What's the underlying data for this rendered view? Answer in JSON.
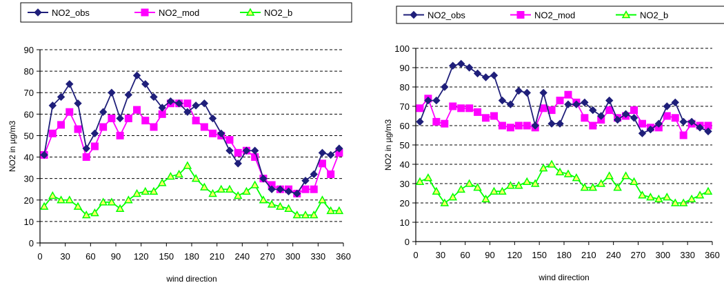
{
  "chart_data": [
    {
      "type": "line",
      "xlabel": "wind direction",
      "ylabel": "NO2 in µg/m3",
      "xlim": [
        0,
        360
      ],
      "ylim": [
        0,
        90
      ],
      "xticks": [
        0,
        30,
        60,
        90,
        120,
        150,
        180,
        210,
        240,
        270,
        300,
        330,
        360
      ],
      "yticks": [
        0,
        10,
        20,
        30,
        40,
        50,
        60,
        70,
        80,
        90
      ],
      "grid": "horizontal dashed",
      "legend": "top",
      "x": [
        5,
        15,
        25,
        35,
        45,
        55,
        65,
        75,
        85,
        95,
        105,
        115,
        125,
        135,
        145,
        155,
        165,
        175,
        185,
        195,
        205,
        215,
        225,
        235,
        245,
        255,
        265,
        275,
        285,
        295,
        305,
        315,
        325,
        335,
        345,
        355
      ],
      "series": [
        {
          "name": "NO2_obs",
          "color": "#1f1f7a",
          "marker": "diamond",
          "values": [
            41,
            64,
            68,
            74,
            65,
            44,
            51,
            61,
            70,
            58,
            69,
            78,
            74,
            68,
            63,
            66,
            65,
            61,
            64,
            65,
            58,
            51,
            43,
            37,
            43,
            43,
            30,
            25,
            25,
            24,
            23,
            29,
            32,
            42,
            41,
            44
          ]
        },
        {
          "name": "NO2_mod",
          "color": "#ff00ff",
          "marker": "square",
          "values": [
            41,
            51,
            55,
            61,
            53,
            40,
            45,
            54,
            58,
            50,
            58,
            62,
            57,
            54,
            60,
            65,
            65,
            65,
            57,
            54,
            51,
            50,
            48,
            42,
            43,
            40,
            30,
            27,
            25,
            25,
            23,
            25,
            25,
            37,
            32,
            42
          ]
        },
        {
          "name": "NO2_b",
          "color": "#00ff00",
          "marker": "triangle",
          "values": [
            17,
            22,
            20,
            20,
            17,
            13,
            14,
            19,
            19,
            16,
            20,
            23,
            24,
            24,
            28,
            31,
            32,
            36,
            30,
            26,
            23,
            25,
            25,
            22,
            24,
            27,
            20,
            18,
            17,
            16,
            13,
            13,
            13,
            20,
            15,
            15
          ]
        }
      ]
    },
    {
      "type": "line",
      "xlabel": "wind direction",
      "ylabel": "NO2 in µg/m3",
      "xlim": [
        0,
        360
      ],
      "ylim": [
        0,
        100
      ],
      "xticks": [
        0,
        30,
        60,
        90,
        120,
        150,
        180,
        210,
        240,
        270,
        300,
        330,
        360
      ],
      "yticks": [
        0,
        10,
        20,
        30,
        40,
        50,
        60,
        70,
        80,
        90,
        100
      ],
      "grid": "horizontal dashed",
      "legend": "top",
      "x": [
        5,
        15,
        25,
        35,
        45,
        55,
        65,
        75,
        85,
        95,
        105,
        115,
        125,
        135,
        145,
        155,
        165,
        175,
        185,
        195,
        205,
        215,
        225,
        235,
        245,
        255,
        265,
        275,
        285,
        295,
        305,
        315,
        325,
        335,
        345,
        355
      ],
      "series": [
        {
          "name": "NO2_obs",
          "color": "#1f1f7a",
          "marker": "diamond",
          "values": [
            62,
            73,
            73,
            80,
            91,
            92,
            90,
            87,
            85,
            86,
            73,
            71,
            78,
            77,
            60,
            77,
            61,
            61,
            71,
            71,
            72,
            68,
            65,
            73,
            63,
            66,
            64,
            56,
            58,
            61,
            70,
            72,
            62,
            62,
            59,
            57
          ]
        },
        {
          "name": "NO2_mod",
          "color": "#ff00ff",
          "marker": "square",
          "values": [
            69,
            74,
            62,
            61,
            70,
            69,
            69,
            67,
            64,
            65,
            60,
            59,
            60,
            60,
            59,
            69,
            68,
            73,
            76,
            72,
            64,
            60,
            63,
            68,
            64,
            65,
            68,
            61,
            59,
            59,
            65,
            64,
            55,
            61,
            60,
            60
          ]
        },
        {
          "name": "NO2_b",
          "color": "#00ff00",
          "marker": "triangle",
          "values": [
            31,
            33,
            26,
            20,
            23,
            27,
            30,
            28,
            22,
            26,
            26,
            29,
            29,
            31,
            30,
            38,
            40,
            36,
            35,
            33,
            28,
            28,
            30,
            34,
            28,
            34,
            31,
            24,
            23,
            22,
            23,
            20,
            20,
            22,
            24,
            26
          ]
        }
      ]
    }
  ]
}
